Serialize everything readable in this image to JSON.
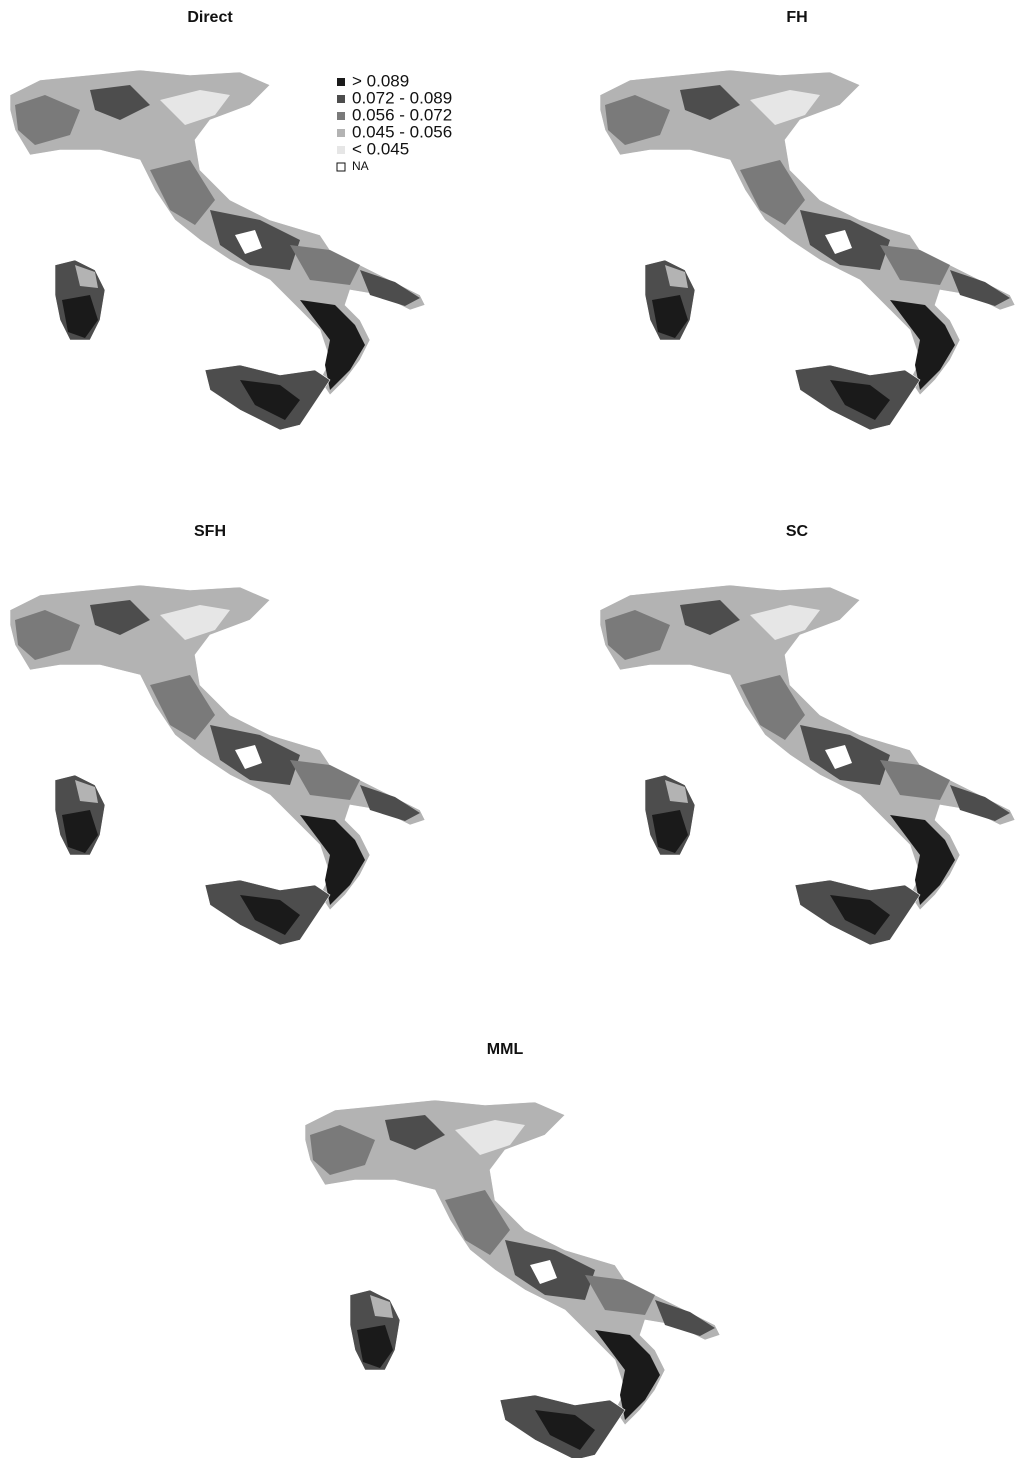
{
  "panels": [
    {
      "title": "Direct"
    },
    {
      "title": "FH"
    },
    {
      "title": "SFH"
    },
    {
      "title": "SC"
    },
    {
      "title": "MML"
    }
  ],
  "legend": {
    "items": [
      {
        "label": "> 0.089",
        "color": "#1a1a1a"
      },
      {
        "label": "0.072 - 0.089",
        "color": "#4d4d4d"
      },
      {
        "label": "0.056 - 0.072",
        "color": "#7a7a7a"
      },
      {
        "label": "0.045 - 0.056",
        "color": "#b3b3b3"
      },
      {
        "label": "< 0.045",
        "color": "#e6e6e6"
      },
      {
        "label": "NA",
        "color": "#ffffff"
      }
    ]
  }
}
